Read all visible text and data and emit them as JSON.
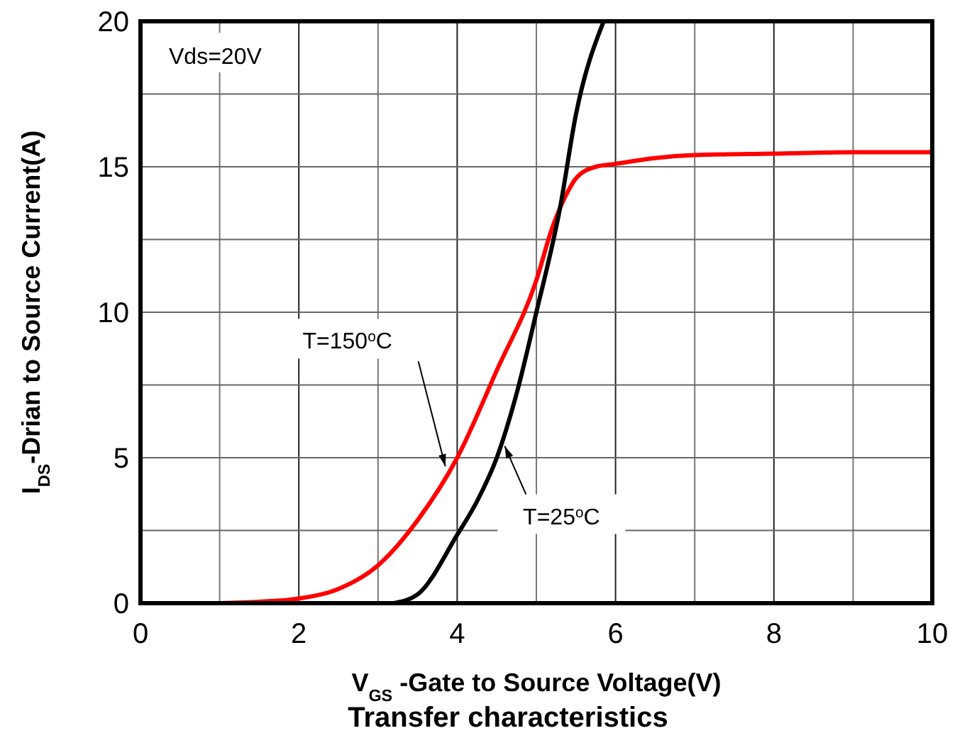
{
  "chart_data": {
    "type": "line",
    "title": "Transfer characteristics",
    "xlabel": "V$_{GS}$ -Gate to Source Voltage(V)",
    "ylabel": "I$_{DS}$-Drian to Source Current(A)",
    "xlim": [
      0,
      10
    ],
    "xticks": [
      0,
      {
        "value": 1,
        "label": null
      },
      2,
      {
        "value": 3,
        "label": null
      },
      4,
      {
        "value": 5,
        "label": null
      },
      6,
      {
        "value": 7,
        "label": null
      },
      8,
      {
        "value": 9,
        "label": null
      },
      10
    ],
    "ylim": [
      0,
      20
    ],
    "yticks": [
      0,
      {
        "value": 2.5,
        "label": null
      },
      5,
      {
        "value": 7.5,
        "label": null
      },
      10,
      {
        "value": 12.5,
        "label": null
      },
      15,
      {
        "value": 17.5,
        "label": null
      },
      20
    ],
    "grid": true,
    "line_style": "solid",
    "series": [
      {
        "color": "#ff0000",
        "x": [
          1,
          1.5,
          2,
          2.5,
          3,
          3.5,
          4,
          4.5,
          5,
          5.2,
          5.37,
          5.5,
          5.75,
          6,
          6.5,
          7,
          8,
          9,
          10
        ],
        "values": [
          0,
          0.05,
          0.16,
          0.49,
          1.3,
          2.85,
          5.0,
          8.0,
          11.1,
          12.9,
          14.0,
          14.6,
          15.0,
          15.1,
          15.3,
          15.4,
          15.45,
          15.5,
          15.5
        ]
      },
      {
        "color": "#000000",
        "x": [
          3.2,
          3.5,
          4,
          4.25,
          4.5,
          4.75,
          5,
          5.3,
          5.5,
          5.85
        ],
        "values": [
          0,
          0.3,
          2.35,
          3.5,
          5.0,
          7.2,
          10.0,
          13.6,
          16.8,
          20
        ]
      }
    ],
    "annotations": [
      "Vds=20V",
      {
        "text": "T=150$^{o}$C",
        "x": 3.85,
        "y": 4.7
      },
      {
        "text": "T=25$^{o}$C",
        "x": 4.6,
        "y": 5.4
      }
    ]
  }
}
